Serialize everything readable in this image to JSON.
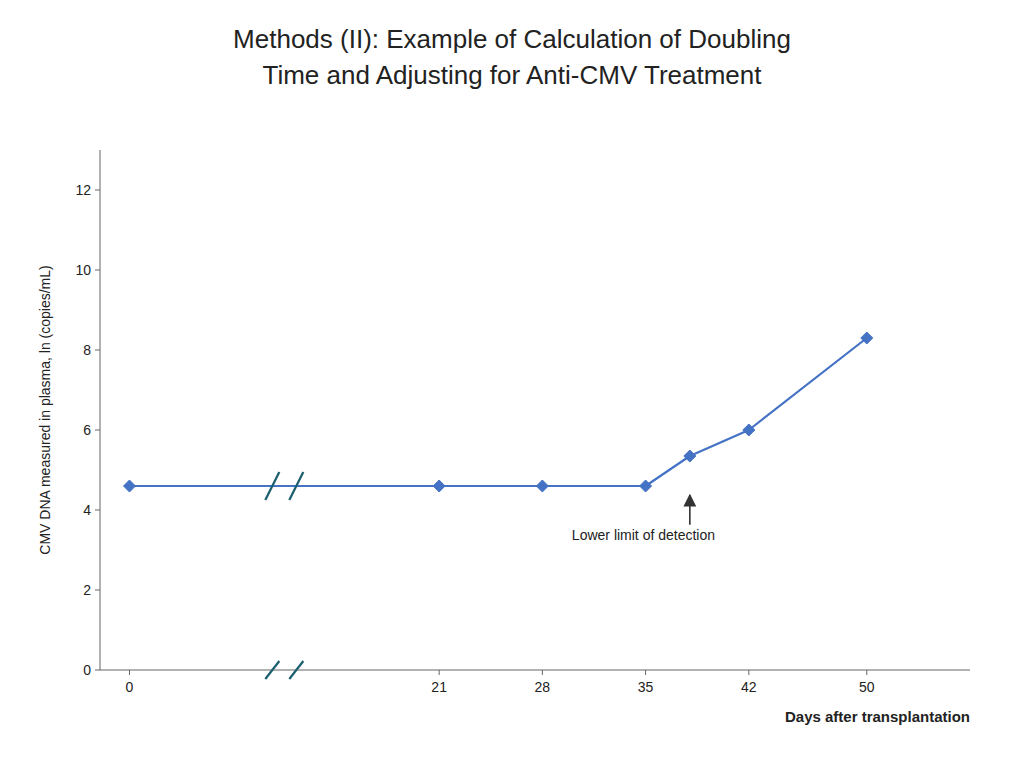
{
  "chart_data": {
    "type": "line",
    "title": [
      "Methods (II): Example of Calculation of Doubling",
      "Time and Adjusting for  Anti-CMV Treatment"
    ],
    "x_label": "Days after transplantation",
    "y_label": "CMV DNA measured in plasma, ln (copies/mL)",
    "x": [
      0,
      21,
      28,
      35,
      38,
      42,
      50
    ],
    "values": [
      4.6,
      4.6,
      4.6,
      4.6,
      5.35,
      6.0,
      8.3
    ],
    "color": "#4472c4",
    "marker": "diamond",
    "xlim": [
      -2,
      57
    ],
    "ylim": [
      0,
      13
    ],
    "xticks": [
      0,
      21,
      28,
      35,
      42,
      50
    ],
    "yticks": [
      0,
      2,
      4,
      6,
      8,
      10,
      12
    ],
    "grid": false,
    "annotations": [
      {
        "text": "Lower limit of detection",
        "x": 30,
        "y": 3.35,
        "arrow_x": 38,
        "arrow_y": 4.6
      }
    ]
  }
}
